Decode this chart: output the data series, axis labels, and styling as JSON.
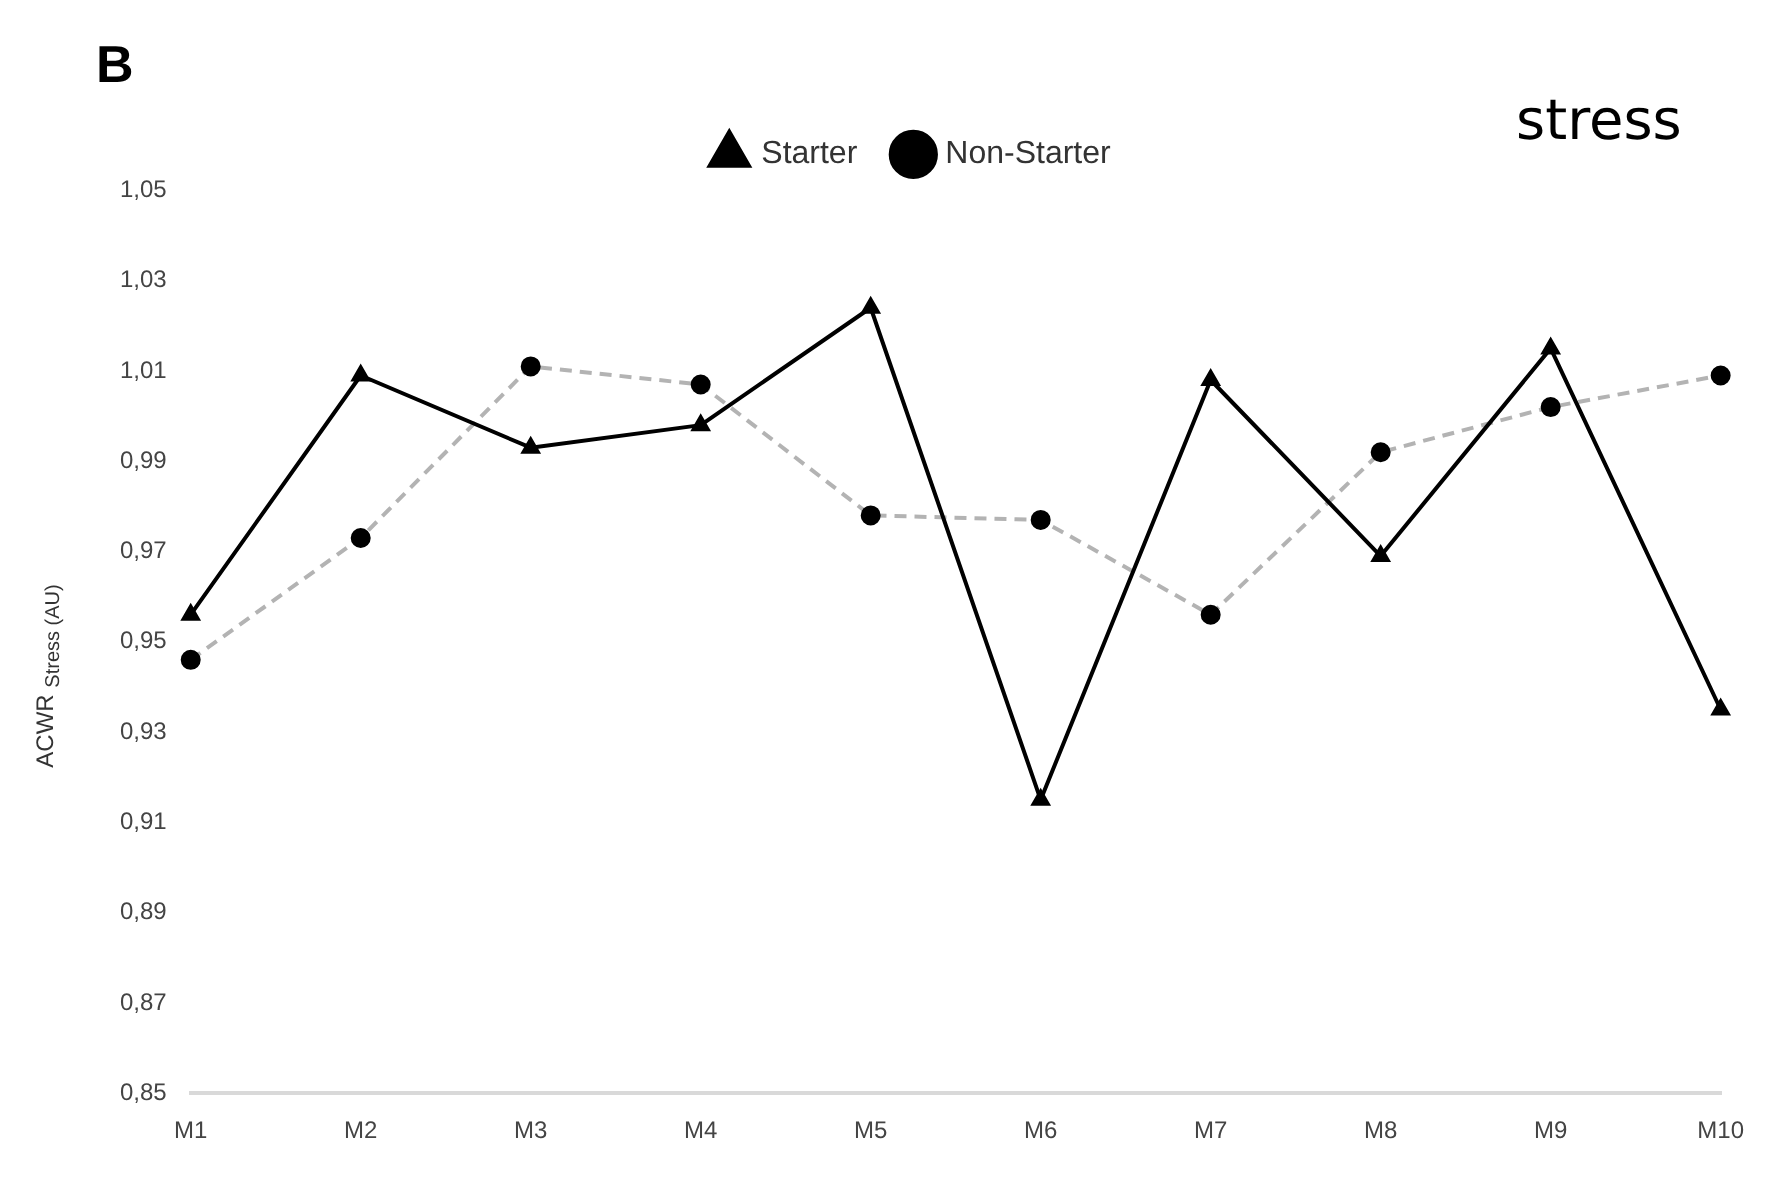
{
  "chart_data": {
    "type": "line",
    "title": "B",
    "ylabel": "ACWR $_{Stress (AU)}$",
    "annotations": [
      "stress"
    ],
    "categories": [
      "M1",
      "M2",
      "M3",
      "M4",
      "M5",
      "M6",
      "M7",
      "M8",
      "M9",
      "M10"
    ],
    "series": [
      {
        "name": "Starter",
        "color": "#000000",
        "marker": "triangle",
        "line_style": "solid",
        "values": [
          0.956,
          1.009,
          0.993,
          0.998,
          1.024,
          0.915,
          1.008,
          0.969,
          1.015,
          0.935
        ]
      },
      {
        "name": "Non-Starter",
        "color": "#b3b3b3",
        "marker": "circle",
        "line_style": "dashed",
        "values": [
          0.946,
          0.973,
          1.011,
          1.007,
          0.978,
          0.977,
          0.956,
          0.992,
          1.002,
          1.009
        ]
      }
    ],
    "ylim": [
      0.85,
      1.05
    ],
    "yticks": [
      {
        "value": 0.85,
        "label": "0,85"
      },
      {
        "value": 0.87,
        "label": "0,87"
      },
      {
        "value": 0.89,
        "label": "0,89"
      },
      {
        "value": 0.91,
        "label": "0,91"
      },
      {
        "value": 0.93,
        "label": "0,93"
      },
      {
        "value": 0.95,
        "label": "0,95"
      },
      {
        "value": 0.97,
        "label": "0,97"
      },
      {
        "value": 0.99,
        "label": "0,99"
      },
      {
        "value": 1.01,
        "label": "1,01"
      },
      {
        "value": 1.03,
        "label": "1,03"
      },
      {
        "value": 1.05,
        "label": "1,05"
      }
    ],
    "grid": false,
    "legend": "top"
  }
}
